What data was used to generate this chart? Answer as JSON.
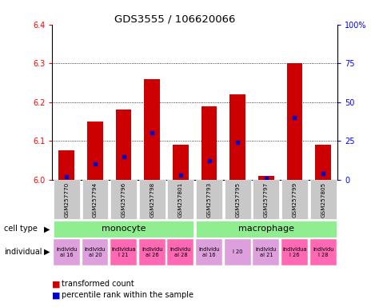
{
  "title": "GDS3555 / 106620066",
  "samples": [
    "GSM257770",
    "GSM257794",
    "GSM257796",
    "GSM257798",
    "GSM257801",
    "GSM257793",
    "GSM257795",
    "GSM257797",
    "GSM257799",
    "GSM257805"
  ],
  "transformed_count": [
    6.075,
    6.15,
    6.18,
    6.26,
    6.09,
    6.19,
    6.22,
    6.01,
    6.3,
    6.09
  ],
  "percentile_rank": [
    2,
    10,
    15,
    30,
    3,
    12,
    24,
    1,
    40,
    4
  ],
  "ylim_left": [
    6.0,
    6.4
  ],
  "ylim_right": [
    0,
    100
  ],
  "yticks_left": [
    6.0,
    6.1,
    6.2,
    6.3,
    6.4
  ],
  "yticks_right": [
    0,
    25,
    50,
    75,
    100
  ],
  "ytick_labels_right": [
    "0",
    "25",
    "50",
    "75",
    "100%"
  ],
  "bar_color": "#CC0000",
  "blue_color": "#0000CC",
  "legend_red": "transformed count",
  "legend_blue": "percentile rank within the sample",
  "ind_labels": [
    "individu\nal 16",
    "individu\nal 20",
    "individua\nl 21",
    "individu\nal 26",
    "individu\nal 28",
    "individu\nal 16",
    "l 20",
    "individu\nal 21",
    "individua\nl 26",
    "individu\nl 28"
  ],
  "ind_colors": [
    "#DDA0DD",
    "#DDA0DD",
    "#FF69B4",
    "#FF69B4",
    "#FF69B4",
    "#DDA0DD",
    "#DDA0DD",
    "#DDA0DD",
    "#FF69B4",
    "#FF69B4"
  ]
}
